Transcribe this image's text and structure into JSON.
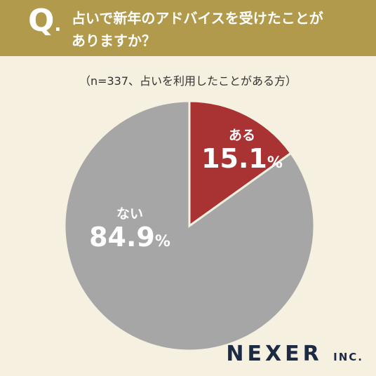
{
  "header": {
    "q_letter": "Q",
    "q_dot": ".",
    "question_line1": "占いで新年のアドバイスを受けたことが",
    "question_line2": "ありますか？"
  },
  "sample_note": "（n=337、占いを利用したことがある方）",
  "chart_data": {
    "type": "pie",
    "categories": [
      "ある",
      "ない"
    ],
    "values": [
      15.1,
      84.9
    ],
    "value_labels": [
      "15.1",
      "84.9"
    ],
    "unit": "%",
    "colors": [
      "#a93232",
      "#a6a6a6"
    ],
    "start_angle": "12 o'clock",
    "direction": "clockwise"
  },
  "logo": {
    "main": "NEXER",
    "suffix": "INC."
  },
  "colors": {
    "header_bg": "#b19a4b",
    "page_bg": "#f6f0e1",
    "logo": "#1d2a44"
  }
}
